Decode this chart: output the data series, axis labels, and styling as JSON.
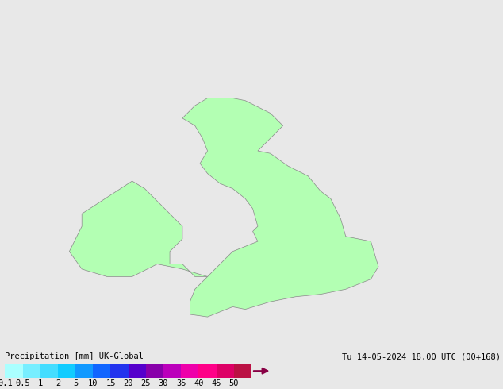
{
  "title_left": "Precipitation [mm] UK-Global",
  "title_right": "Tu 14-05-2024 18.00 UTC (00+168)",
  "bg_color": "#e8e8e8",
  "land_color": "#b3ffb3",
  "land_edge_color": "#888888",
  "sea_color": "#e8e8e8",
  "map_extent": [
    -11.0,
    4.5,
    48.5,
    62.5
  ],
  "colorbar_tick_labels": [
    "0.1",
    "0.5",
    "1",
    "2",
    "5",
    "10",
    "15",
    "20",
    "25",
    "30",
    "35",
    "40",
    "45",
    "50"
  ],
  "colorbar_colors": [
    "#aaffff",
    "#77eeff",
    "#44ddff",
    "#11ccff",
    "#1199ff",
    "#1166ff",
    "#2233ee",
    "#5500cc",
    "#8800aa",
    "#bb00bb",
    "#ee00aa",
    "#ff0088",
    "#dd0066",
    "#bb1144"
  ],
  "font_size_labels": 7.5,
  "font_size_title": 7.5
}
